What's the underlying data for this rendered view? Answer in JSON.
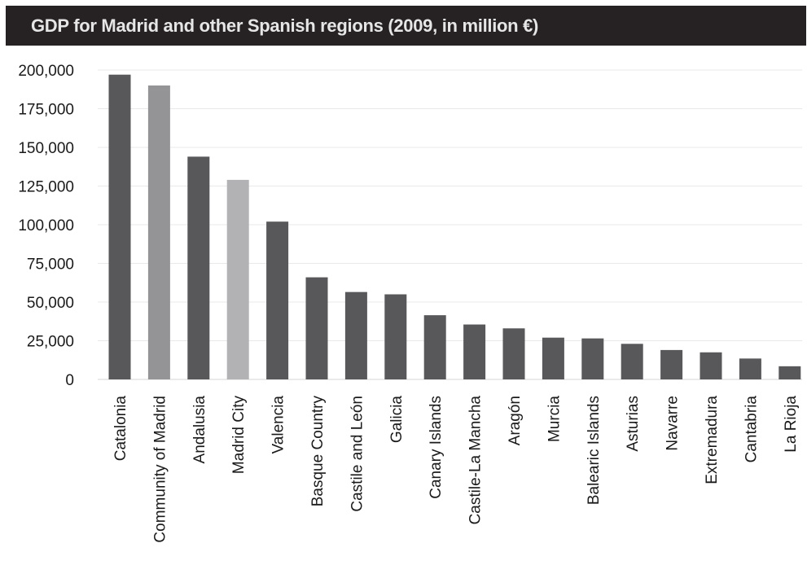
{
  "chart_data": {
    "type": "bar",
    "title": "GDP for Madrid and other Spanish regions (2009, in million €)",
    "xlabel": "",
    "ylabel": "",
    "ylim": [
      0,
      200000
    ],
    "yticks": [
      0,
      25000,
      50000,
      75000,
      100000,
      125000,
      150000,
      175000,
      200000
    ],
    "ytick_labels": [
      "0",
      "25,000",
      "50,000",
      "75,000",
      "100,000",
      "125,000",
      "150,000",
      "175,000",
      "200,000"
    ],
    "grid": true,
    "categories": [
      "Catalonia",
      "Community of Madrid",
      "Andalusia",
      "Madrid City",
      "Valencia",
      "Basque Country",
      "Castile and León",
      "Galicia",
      "Canary Islands",
      "Castile-La Mancha",
      "Aragón",
      "Murcia",
      "Balearic Islands",
      "Asturias",
      "Navarre",
      "Extremadura",
      "Cantabria",
      "La Rioja"
    ],
    "values": [
      197000,
      190000,
      144000,
      129000,
      102000,
      66000,
      56500,
      55000,
      41500,
      35500,
      33000,
      27000,
      26500,
      23000,
      19000,
      17500,
      13500,
      8500
    ],
    "colors": [
      "#58585a",
      "#949497",
      "#58585a",
      "#b2b2b5",
      "#58585a",
      "#58585a",
      "#58585a",
      "#58585a",
      "#58585a",
      "#58585a",
      "#58585a",
      "#58585a",
      "#58585a",
      "#58585a",
      "#58585a",
      "#58585a",
      "#58585a",
      "#58585a"
    ]
  }
}
